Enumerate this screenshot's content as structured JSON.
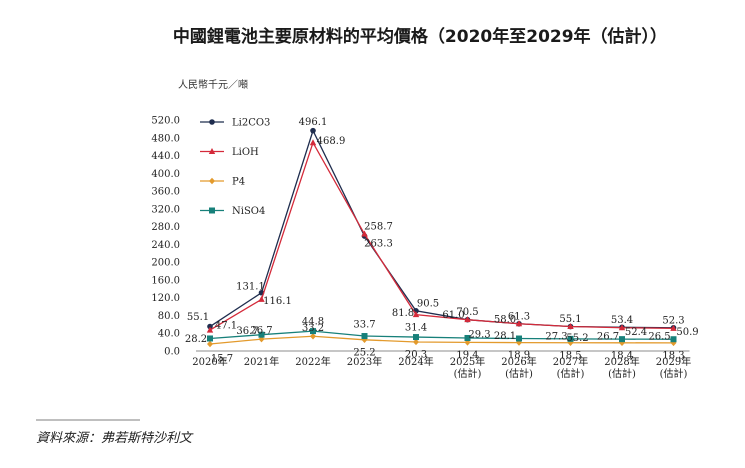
{
  "chart_data": {
    "type": "line",
    "title": "中國鋰電池主要原材料的平均價格（2020年至2029年（估計））",
    "ylabel": "人民幣千元／噸",
    "ylim": [
      0,
      520
    ],
    "yticks": [
      "0.0",
      "40.0",
      "80.0",
      "120.0",
      "160.0",
      "200.0",
      "240.0",
      "280.0",
      "320.0",
      "360.0",
      "400.0",
      "440.0",
      "480.0",
      "520.0"
    ],
    "categories": [
      "2020年",
      "2021年",
      "2022年",
      "2023年",
      "2024年",
      "2025年\n(估計)",
      "2026年\n(估計)",
      "2027年\n(估計)",
      "2028年\n(估計)",
      "2029年\n(估計)"
    ],
    "series": [
      {
        "name": "Li2CO3",
        "color": "#1f2d4e",
        "marker": "circle",
        "values": [
          55.1,
          131.1,
          496.1,
          258.7,
          90.5,
          70.5,
          61.3,
          55.1,
          53.4,
          52.3
        ]
      },
      {
        "name": "LiOH",
        "color": "#d42a3a",
        "marker": "triangle",
        "values": [
          47.1,
          116.1,
          468.9,
          263.3,
          81.8,
          70.5,
          61.3,
          55.2,
          52.4,
          50.9
        ]
      },
      {
        "name": "P4",
        "color": "#e39a2c",
        "marker": "diamond",
        "values": [
          15.7,
          26.7,
          33.2,
          25.2,
          20.3,
          19.4,
          18.9,
          18.5,
          18.4,
          18.3
        ]
      },
      {
        "name": "NiSO4",
        "color": "#17807a",
        "marker": "square",
        "values": [
          28.2,
          36.7,
          44.8,
          33.7,
          31.4,
          29.3,
          28.1,
          27.3,
          26.7,
          26.5
        ]
      }
    ],
    "labels": [
      [
        "55.1",
        "131.1",
        "496.1",
        "258.7",
        "90.5",
        "70.5",
        "61.3",
        "55.1",
        "53.4",
        "52.3"
      ],
      [
        "47.1",
        "116.1",
        "468.9",
        "263.3",
        "81.8",
        "61.0",
        "58.0",
        "55.2",
        "52.4",
        "50.9"
      ],
      [
        "15.7",
        "26.7",
        "33.2",
        "25.2",
        "20.3",
        "19.4",
        "18.9",
        "18.5",
        "18.4",
        "18.3"
      ],
      [
        "28.2",
        "36.7",
        "44.8",
        "33.7",
        "31.4",
        "29.3",
        "28.1",
        "27.3",
        "26.7",
        "26.5"
      ]
    ],
    "source": "資料來源：弗若斯特沙利文"
  }
}
